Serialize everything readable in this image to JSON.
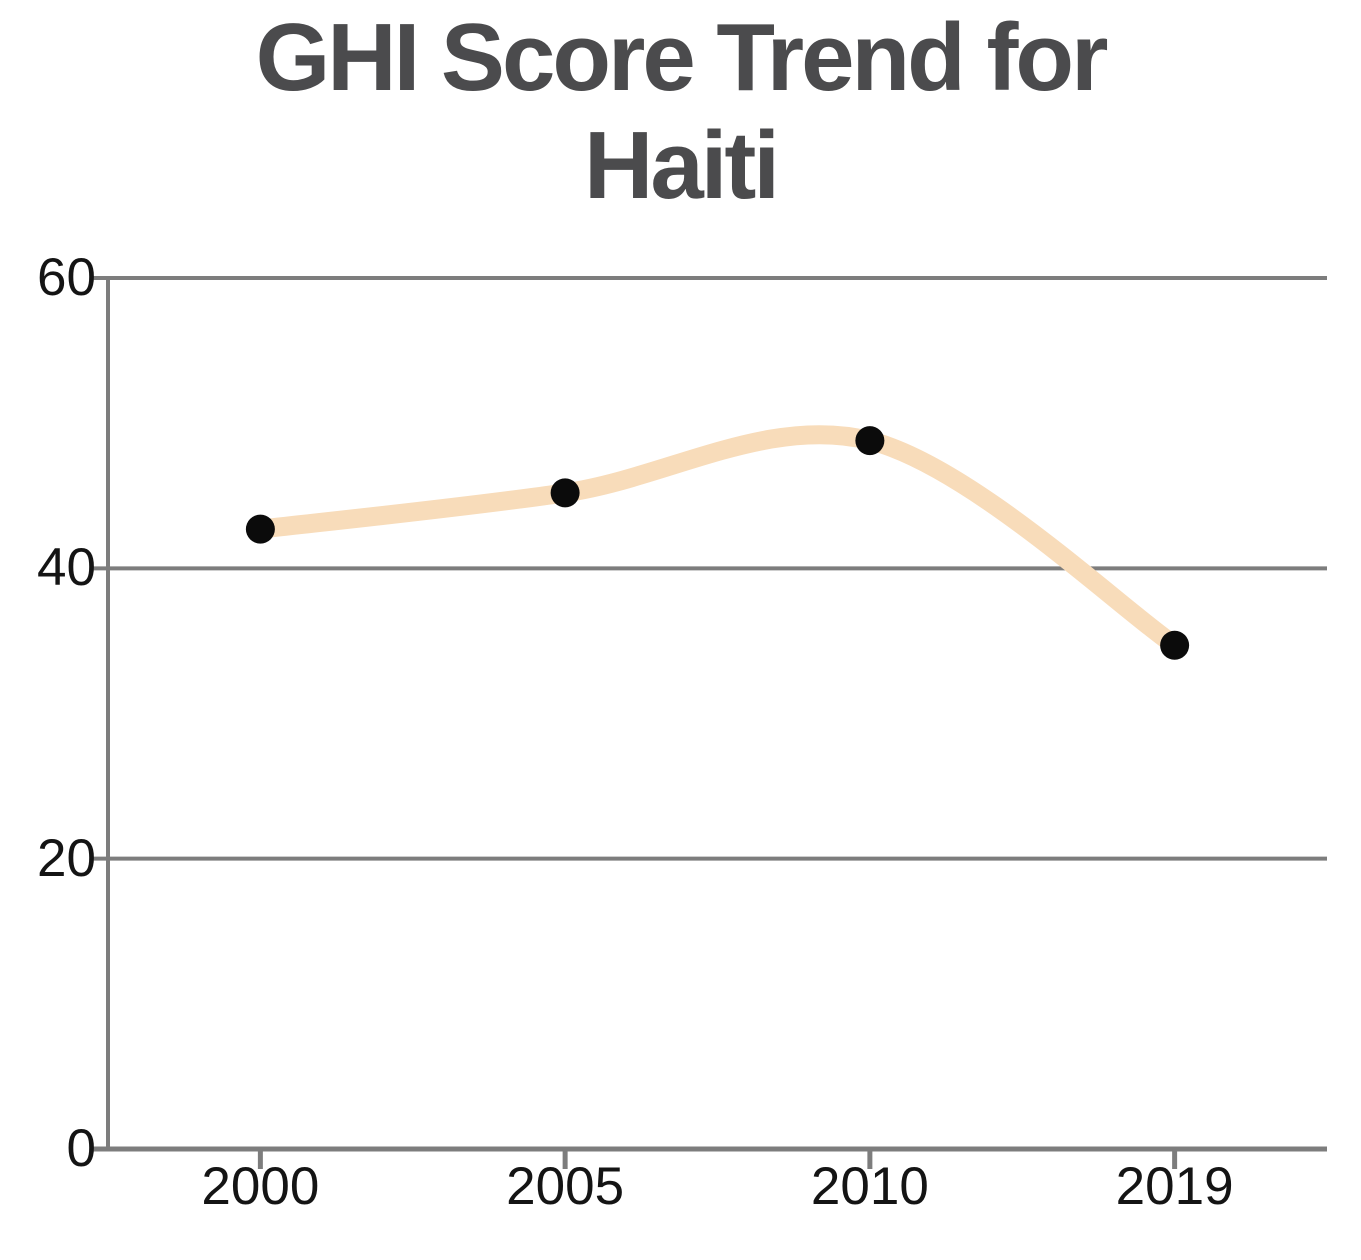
{
  "title": {
    "line1": "GHI Score Trend for",
    "line2": "Haiti",
    "full": "GHI Score Trend for Haiti"
  },
  "colors": {
    "line": "#f8dcba",
    "marker": "#0b0b0b",
    "grid": "#7d7d7d",
    "title_text": "#4b4b4d",
    "tick_text": "#141414",
    "background": "#ffffff"
  },
  "chart_data": {
    "type": "line",
    "title": "GHI Score Trend for Haiti",
    "categories": [
      "2000",
      "2005",
      "2010",
      "2019"
    ],
    "series": [
      {
        "name": "GHI Score",
        "values": [
          42.7,
          45.2,
          48.8,
          34.7
        ]
      }
    ],
    "xlabel": "",
    "ylabel": "",
    "ylim": [
      0,
      60
    ],
    "y_ticks": [
      "0",
      "20",
      "40",
      "60"
    ],
    "y_tick_values": [
      0,
      20,
      40,
      60
    ],
    "grid": true,
    "legend": false,
    "smoothed": true,
    "marker": "circle"
  }
}
